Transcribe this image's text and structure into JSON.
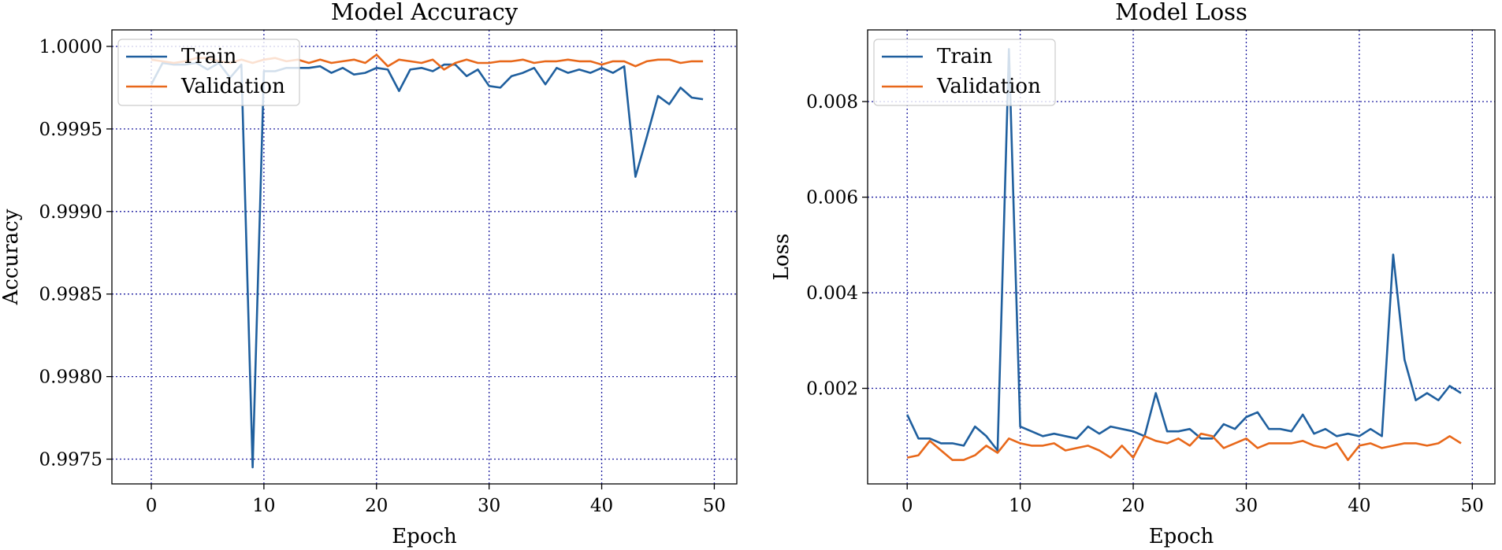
{
  "chart_data": [
    {
      "type": "line",
      "title": "Model Accuracy",
      "xlabel": "Epoch",
      "ylabel": "Accuracy",
      "xlim": [
        -3.5,
        52
      ],
      "ylim": [
        0.99735,
        1.0001
      ],
      "xticks": [
        0,
        10,
        20,
        30,
        40,
        50
      ],
      "xtick_labels": [
        "0",
        "10",
        "20",
        "30",
        "40",
        "50"
      ],
      "yticks": [
        0.9975,
        0.998,
        0.9985,
        0.999,
        0.9995,
        1.0
      ],
      "ytick_labels": [
        "0.9975",
        "0.9980",
        "0.9985",
        "0.9990",
        "0.9995",
        "1.0000"
      ],
      "grid": true,
      "legend_position": "upper-left",
      "series": [
        {
          "name": "Train",
          "color": "#1f5f9e",
          "x": [
            0,
            1,
            2,
            3,
            4,
            5,
            6,
            7,
            8,
            9,
            10,
            11,
            12,
            13,
            14,
            15,
            16,
            17,
            18,
            19,
            20,
            21,
            22,
            23,
            24,
            25,
            26,
            27,
            28,
            29,
            30,
            31,
            32,
            33,
            34,
            35,
            36,
            37,
            38,
            39,
            40,
            41,
            42,
            43,
            44,
            45,
            46,
            47,
            48,
            49
          ],
          "values": [
            0.99977,
            0.9999,
            0.99989,
            0.99989,
            0.9999,
            0.99986,
            0.9999,
            0.99981,
            0.99989,
            0.99745,
            0.99985,
            0.99985,
            0.99987,
            0.99987,
            0.99987,
            0.99988,
            0.99984,
            0.99987,
            0.99983,
            0.99984,
            0.99987,
            0.99986,
            0.99973,
            0.99986,
            0.99987,
            0.99985,
            0.99989,
            0.99989,
            0.99982,
            0.99986,
            0.99976,
            0.99975,
            0.99982,
            0.99984,
            0.99987,
            0.99977,
            0.99987,
            0.99984,
            0.99986,
            0.99984,
            0.99987,
            0.99984,
            0.99988,
            0.99921,
            0.99945,
            0.9997,
            0.99965,
            0.99975,
            0.99969,
            0.99968
          ]
        },
        {
          "name": "Validation",
          "color": "#e8681a",
          "x": [
            0,
            1,
            2,
            3,
            4,
            5,
            6,
            7,
            8,
            9,
            10,
            11,
            12,
            13,
            14,
            15,
            16,
            17,
            18,
            19,
            20,
            21,
            22,
            23,
            24,
            25,
            26,
            27,
            28,
            29,
            30,
            31,
            32,
            33,
            34,
            35,
            36,
            37,
            38,
            39,
            40,
            41,
            42,
            43,
            44,
            45,
            46,
            47,
            48,
            49
          ],
          "values": [
            0.99992,
            0.99991,
            0.9999,
            0.99991,
            0.99993,
            0.99993,
            0.99991,
            0.9999,
            0.99992,
            0.9999,
            0.99992,
            0.99993,
            0.99991,
            0.99992,
            0.9999,
            0.99992,
            0.9999,
            0.99991,
            0.99992,
            0.9999,
            0.99995,
            0.99988,
            0.99992,
            0.99991,
            0.9999,
            0.99992,
            0.99986,
            0.9999,
            0.99992,
            0.9999,
            0.9999,
            0.99991,
            0.99991,
            0.99992,
            0.9999,
            0.99991,
            0.99991,
            0.99992,
            0.99991,
            0.99991,
            0.99989,
            0.99991,
            0.99991,
            0.99988,
            0.99991,
            0.99992,
            0.99992,
            0.9999,
            0.99991,
            0.99991
          ]
        }
      ]
    },
    {
      "type": "line",
      "title": "Model Loss",
      "xlabel": "Epoch",
      "ylabel": "Loss",
      "xlim": [
        -3.5,
        52
      ],
      "ylim": [
        0.0,
        0.0095
      ],
      "xticks": [
        0,
        10,
        20,
        30,
        40,
        50
      ],
      "xtick_labels": [
        "0",
        "10",
        "20",
        "30",
        "40",
        "50"
      ],
      "yticks": [
        0.002,
        0.004,
        0.006,
        0.008
      ],
      "ytick_labels": [
        "0.002",
        "0.004",
        "0.006",
        "0.008"
      ],
      "grid": true,
      "legend_position": "upper-left",
      "series": [
        {
          "name": "Train",
          "color": "#1f5f9e",
          "x": [
            0,
            1,
            2,
            3,
            4,
            5,
            6,
            7,
            8,
            9,
            10,
            11,
            12,
            13,
            14,
            15,
            16,
            17,
            18,
            19,
            20,
            21,
            22,
            23,
            24,
            25,
            26,
            27,
            28,
            29,
            30,
            31,
            32,
            33,
            34,
            35,
            36,
            37,
            38,
            39,
            40,
            41,
            42,
            43,
            44,
            45,
            46,
            47,
            48,
            49
          ],
          "values": [
            0.00145,
            0.00095,
            0.00095,
            0.00085,
            0.00085,
            0.0008,
            0.0012,
            0.001,
            0.0007,
            0.0091,
            0.0012,
            0.0011,
            0.001,
            0.00105,
            0.001,
            0.00095,
            0.0012,
            0.00105,
            0.0012,
            0.00115,
            0.0011,
            0.001,
            0.0019,
            0.0011,
            0.0011,
            0.00115,
            0.00095,
            0.00095,
            0.00125,
            0.00115,
            0.0014,
            0.0015,
            0.00115,
            0.00115,
            0.0011,
            0.00145,
            0.00105,
            0.00115,
            0.001,
            0.00105,
            0.001,
            0.00115,
            0.001,
            0.0048,
            0.0026,
            0.00175,
            0.0019,
            0.00175,
            0.00205,
            0.0019
          ]
        },
        {
          "name": "Validation",
          "color": "#e8681a",
          "x": [
            0,
            1,
            2,
            3,
            4,
            5,
            6,
            7,
            8,
            9,
            10,
            11,
            12,
            13,
            14,
            15,
            16,
            17,
            18,
            19,
            20,
            21,
            22,
            23,
            24,
            25,
            26,
            27,
            28,
            29,
            30,
            31,
            32,
            33,
            34,
            35,
            36,
            37,
            38,
            39,
            40,
            41,
            42,
            43,
            44,
            45,
            46,
            47,
            48,
            49
          ],
          "values": [
            0.00055,
            0.0006,
            0.0009,
            0.0007,
            0.0005,
            0.0005,
            0.0006,
            0.0008,
            0.00065,
            0.00095,
            0.00085,
            0.0008,
            0.0008,
            0.00085,
            0.0007,
            0.00075,
            0.0008,
            0.0007,
            0.00055,
            0.0008,
            0.00055,
            0.001,
            0.0009,
            0.00085,
            0.00095,
            0.0008,
            0.00105,
            0.001,
            0.00075,
            0.00085,
            0.00095,
            0.00075,
            0.00085,
            0.00085,
            0.00085,
            0.0009,
            0.0008,
            0.00075,
            0.00085,
            0.0005,
            0.0008,
            0.00085,
            0.00075,
            0.0008,
            0.00085,
            0.00085,
            0.0008,
            0.00085,
            0.001,
            0.00085
          ]
        }
      ]
    }
  ]
}
